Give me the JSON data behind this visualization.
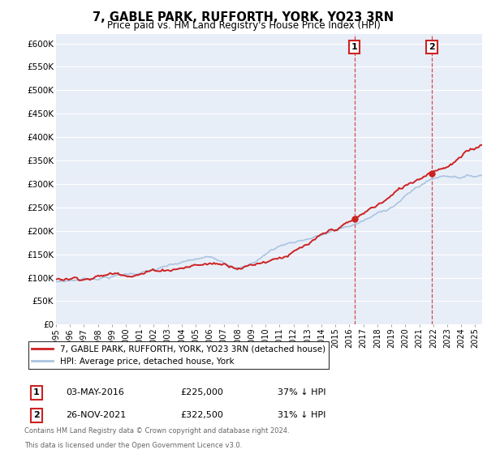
{
  "title": "7, GABLE PARK, RUFFORTH, YORK, YO23 3RN",
  "subtitle": "Price paid vs. HM Land Registry's House Price Index (HPI)",
  "ylim": [
    0,
    620000
  ],
  "yticks": [
    0,
    50000,
    100000,
    150000,
    200000,
    250000,
    300000,
    350000,
    400000,
    450000,
    500000,
    550000,
    600000
  ],
  "ytick_labels": [
    "£0",
    "£50K",
    "£100K",
    "£150K",
    "£200K",
    "£250K",
    "£300K",
    "£350K",
    "£400K",
    "£450K",
    "£500K",
    "£550K",
    "£600K"
  ],
  "hpi_color": "#aac4e0",
  "price_color": "#cc2222",
  "annotation_box_color": "#cc2222",
  "dashed_line_color": "#cc2222",
  "legend_label_price": "7, GABLE PARK, RUFFORTH, YORK, YO23 3RN (detached house)",
  "legend_label_hpi": "HPI: Average price, detached house, York",
  "transaction1_date": "03-MAY-2016",
  "transaction1_price": 225000,
  "transaction2_date": "26-NOV-2021",
  "transaction2_price": 322500,
  "t1_year": 2016.37,
  "t2_year": 2021.9,
  "footer1": "Contains HM Land Registry data © Crown copyright and database right 2024.",
  "footer2": "This data is licensed under the Open Government Licence v3.0.",
  "background_color": "#ffffff",
  "plot_bg_color": "#e8eef8",
  "grid_color": "#ffffff",
  "xlim_start": 1995,
  "xlim_end": 2025.5
}
